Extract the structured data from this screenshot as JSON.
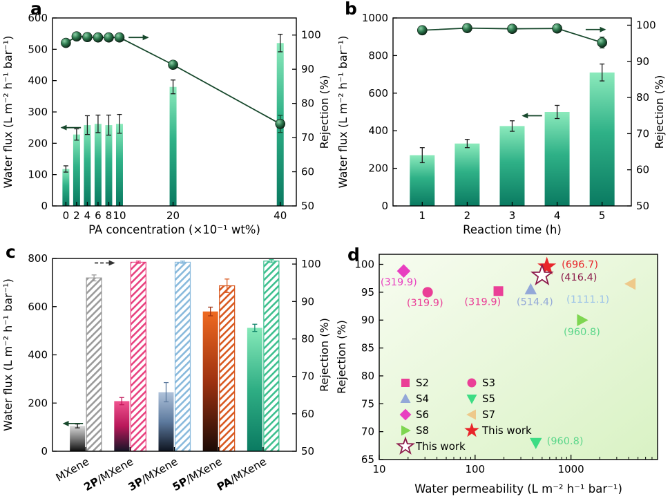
{
  "figure": {
    "background": "#ffffff"
  },
  "chart_data": [
    {
      "id": "a",
      "panel_letter": "a",
      "type": "bar-line",
      "xlabel": "PA concentration (×10⁻¹ wt%)",
      "ylabel_left": "Water flux (L m⁻² h⁻¹ bar⁻¹)",
      "ylabel_right": "Rejection (%)",
      "x": [
        0,
        2,
        4,
        6,
        8,
        10,
        20,
        40
      ],
      "xlim": [
        -2.5,
        43
      ],
      "xticks": [
        0,
        2,
        4,
        6,
        8,
        10,
        20,
        40
      ],
      "flux": [
        118,
        228,
        258,
        262,
        258,
        262,
        380,
        520
      ],
      "flux_err": [
        10,
        18,
        30,
        28,
        32,
        30,
        22,
        28
      ],
      "rejection": [
        97.7,
        99.6,
        99.4,
        99.3,
        99.3,
        99.3,
        91.3,
        74
      ],
      "rejection_err": [
        0.9,
        0.5,
        0.5,
        0.5,
        0.5,
        0.5,
        1.2,
        2.5
      ],
      "ylim_left": [
        0,
        600
      ],
      "yticks_left": [
        0,
        100,
        200,
        300,
        400,
        500,
        600
      ],
      "ylim_right": [
        50,
        105
      ],
      "yticks_right": [
        50,
        60,
        70,
        80,
        90,
        100
      ],
      "bar_gradient": [
        "#8ceabc",
        "#2fb187",
        "#0a7a61"
      ],
      "line_color": "#17482c",
      "arrows": [
        {
          "x": 13.5,
          "y": 99.3,
          "axis": "right",
          "dir": "right"
        },
        {
          "x": 1.0,
          "y": 250,
          "axis": "left",
          "dir": "left"
        }
      ]
    },
    {
      "id": "b",
      "panel_letter": "b",
      "type": "bar-line",
      "xlabel": "Reaction time (h)",
      "ylabel_left": "Water flux (L m⁻² h⁻¹ bar⁻¹)",
      "ylabel_right": "Rejection (%)",
      "x": [
        1,
        2,
        3,
        4,
        5
      ],
      "xlim": [
        0.35,
        5.65
      ],
      "xticks": [
        1,
        2,
        3,
        4,
        5
      ],
      "flux": [
        270,
        332,
        425,
        500,
        710
      ],
      "flux_err": [
        40,
        22,
        28,
        35,
        45
      ],
      "rejection": [
        98.6,
        99.2,
        99.0,
        99.1,
        95.2
      ],
      "rejection_err": [
        0.7,
        0.5,
        0.6,
        0.6,
        1.5
      ],
      "ylim_left": [
        0,
        1000
      ],
      "yticks_left": [
        0,
        200,
        400,
        600,
        800,
        1000
      ],
      "ylim_right": [
        50,
        102
      ],
      "yticks_right": [
        50,
        60,
        70,
        80,
        90,
        100
      ],
      "bar_gradient": [
        "#8ceabc",
        "#2fb187",
        "#0a7a61"
      ],
      "line_color": "#17482c",
      "arrows": [
        {
          "x": 4.85,
          "y": 98.8,
          "axis": "right",
          "dir": "right"
        },
        {
          "x": 3.45,
          "y": 480,
          "axis": "left",
          "dir": "left"
        }
      ]
    },
    {
      "id": "c",
      "panel_letter": "c",
      "type": "dual-bar",
      "ylabel_left": "Water flux (L m⁻² h⁻¹ bar⁻¹)",
      "ylabel_right": "Rejection (%)",
      "categories": [
        "MXene",
        "2P/MXene",
        "3P/MXene",
        "5P/MXene",
        "PA/MXene"
      ],
      "categories_bold_prefix": [
        "",
        "2P",
        "3P",
        "5P",
        "PA"
      ],
      "flux": [
        105,
        208,
        245,
        580,
        512
      ],
      "flux_err": [
        8,
        15,
        40,
        18,
        15
      ],
      "rejection": [
        96.3,
        100.5,
        100.5,
        94.2,
        100.8
      ],
      "rejection_err": [
        0.8,
        0.3,
        0.3,
        1.8,
        0.4
      ],
      "ylim_left": [
        0,
        800
      ],
      "yticks_left": [
        0,
        200,
        400,
        600,
        800
      ],
      "ylim_right": [
        50,
        101.5
      ],
      "yticks_right": [
        50,
        60,
        70,
        80,
        90,
        100
      ],
      "xlim": [
        -0.75,
        4.75
      ],
      "bar_gradients": [
        [
          "#d9d9d9",
          "#7a7a7a",
          "#0d0d0d"
        ],
        [
          "#f0538f",
          "#b9185a",
          "#161628"
        ],
        [
          "#afc2da",
          "#5d7a9e",
          "#0e1420"
        ],
        [
          "#ef6a21",
          "#9e3210",
          "#1d0b06"
        ],
        [
          "#86e9b9",
          "#2fae84",
          "#0a7a61"
        ]
      ],
      "hatch_colors": [
        "#9a9a9a",
        "#e8417f",
        "#88b9dc",
        "#d8581f",
        "#3cbf8e"
      ],
      "err_colors": [
        "#1a1a1a",
        "#c2185b",
        "#5d7a9e",
        "#a03312",
        "#12876b"
      ],
      "line_color": "#17482c",
      "arrows": [
        {
          "x": 0.42,
          "y": 100.3,
          "axis": "right",
          "dir": "right",
          "dash": true,
          "color": "#333333"
        },
        {
          "x": -0.28,
          "y": 115,
          "axis": "left",
          "dir": "left",
          "color": "#17482c"
        }
      ]
    },
    {
      "id": "d",
      "panel_letter": "d",
      "type": "scatter-log",
      "xlabel": "Water permeability (L m⁻² h⁻¹ bar⁻¹)",
      "ylabel": "Rejection (%)",
      "xlim": [
        10,
        8000
      ],
      "xticks": [
        10,
        100,
        1000
      ],
      "xtick_labels": [
        "10",
        "100",
        "1000"
      ],
      "ylim": [
        65,
        101.8
      ],
      "yticks": [
        65,
        70,
        75,
        80,
        85,
        90,
        95,
        100
      ],
      "bg_gradient": [
        "#f7fcf0",
        "#d9f2c4"
      ],
      "points": [
        {
          "name": "S6",
          "shape": "diamond",
          "color": "#e83fc0",
          "x": 18,
          "y": 98.8,
          "label": "(319.9)",
          "label_x": 16,
          "label_y": 96.2,
          "label_color": "#e83fc0",
          "anchor": "middle"
        },
        {
          "name": "S3",
          "shape": "circle",
          "color": "#ea3f97",
          "x": 32,
          "y": 95,
          "label": "(319.9)",
          "label_x": 30,
          "label_y": 92.5,
          "label_color": "#ea3f97",
          "anchor": "middle"
        },
        {
          "name": "S2",
          "shape": "square",
          "color": "#ea3f97",
          "x": 175,
          "y": 95.2,
          "label": "(319.9)",
          "label_x": 120,
          "label_y": 92.7,
          "label_color": "#ea3f97",
          "anchor": "middle"
        },
        {
          "name": "S4",
          "shape": "triangle-up",
          "color": "#93a8d8",
          "x": 380,
          "y": 95.5,
          "label": "(514.4)",
          "label_x": 420,
          "label_y": 92.7,
          "label_color": "#93a8d8",
          "anchor": "middle"
        },
        {
          "name": "S7",
          "shape": "triangle-left",
          "color": "#eec98a",
          "x": 4200,
          "y": 96.5,
          "label": "(1111.1)",
          "label_x": 1500,
          "label_y": 93.1,
          "label_color": "#9cc3e8",
          "anchor": "middle"
        },
        {
          "name": "S8",
          "shape": "triangle-right",
          "color": "#7ed651",
          "x": 1300,
          "y": 90,
          "label": "(960.8)",
          "label_x": 1300,
          "label_y": 87.3,
          "label_color": "#5bd68a",
          "anchor": "middle"
        },
        {
          "name": "S5",
          "shape": "triangle-down",
          "color": "#3ddc84",
          "x": 430,
          "y": 68,
          "label": "(960.8)",
          "label_x": 560,
          "label_y": 67.7,
          "label_color": "#5bd68a",
          "anchor": "start"
        },
        {
          "name": "This work",
          "shape": "star",
          "color": "#e8252a",
          "x": 560,
          "y": 99.6,
          "label": "(696.7)",
          "label_x": 800,
          "label_y": 99.4,
          "label_color": "#e8252a",
          "anchor": "start"
        },
        {
          "name": "This work",
          "shape": "star-open",
          "color": "#8b1a4a",
          "x": 500,
          "y": 98,
          "label": "(416.4)",
          "label_x": 780,
          "label_y": 97.1,
          "label_color": "#8b1a4a",
          "anchor": "start"
        }
      ],
      "legend": [
        {
          "label": "S2",
          "shape": "square",
          "color": "#ea3f97"
        },
        {
          "label": "S3",
          "shape": "circle",
          "color": "#ea3f97"
        },
        {
          "label": "S4",
          "shape": "triangle-up",
          "color": "#93a8d8"
        },
        {
          "label": "S5",
          "shape": "triangle-down",
          "color": "#3ddc84"
        },
        {
          "label": "S6",
          "shape": "diamond",
          "color": "#e83fc0"
        },
        {
          "label": "S7",
          "shape": "triangle-left",
          "color": "#eec98a"
        },
        {
          "label": "S8",
          "shape": "triangle-right",
          "color": "#7ed651"
        },
        {
          "label": "This work",
          "shape": "star",
          "color": "#e8252a"
        },
        {
          "label": "This work",
          "shape": "star-open",
          "color": "#8b1a4a"
        }
      ]
    }
  ]
}
